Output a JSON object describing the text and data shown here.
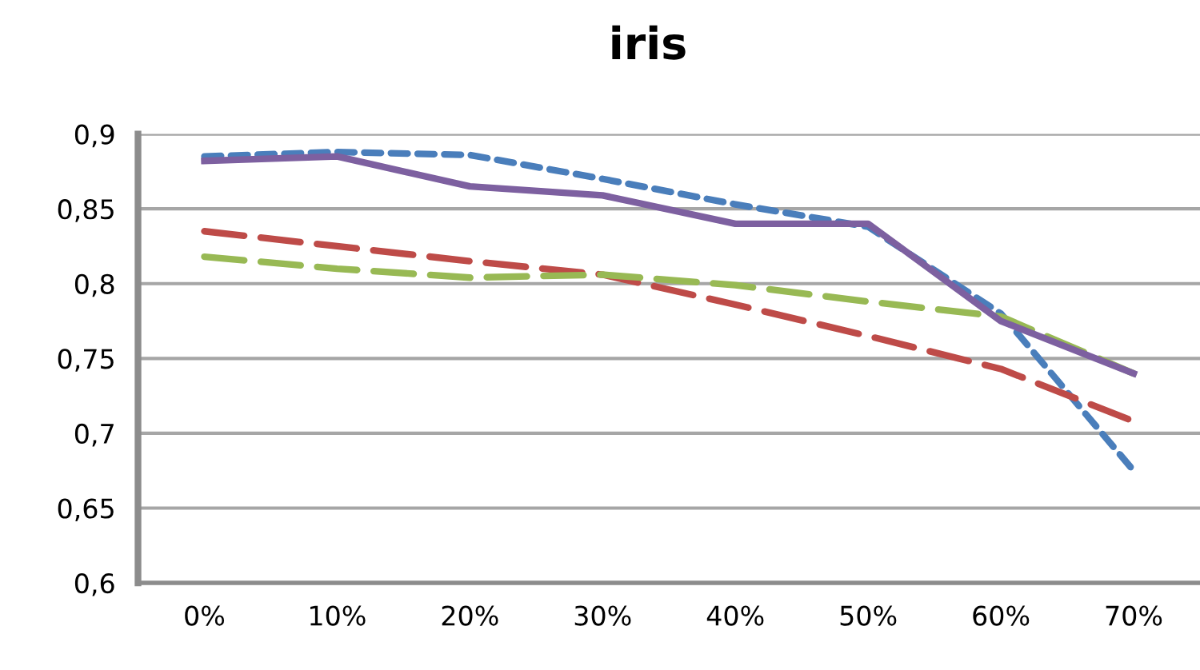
{
  "chart_data": {
    "type": "line",
    "title": "iris",
    "categories": [
      "0%",
      "10%",
      "20%",
      "30%",
      "40%",
      "50%",
      "60%",
      "70%"
    ],
    "series": [
      {
        "color": "#4a7ebb",
        "line_style": "dotted",
        "values": [
          0.885,
          0.888,
          0.886,
          0.87,
          0.853,
          0.838,
          0.78,
          0.675
        ]
      },
      {
        "color": "#be4b48",
        "line_style": "dashed",
        "values": [
          0.835,
          0.825,
          0.815,
          0.806,
          0.786,
          0.765,
          0.743,
          0.708
        ]
      },
      {
        "color": "#98b954",
        "line_style": "dashed",
        "values": [
          0.818,
          0.81,
          0.804,
          0.806,
          0.799,
          0.788,
          0.778,
          0.74
        ]
      },
      {
        "color": "#7d60a0",
        "line_style": "solid",
        "values": [
          0.882,
          0.885,
          0.865,
          0.859,
          0.84,
          0.84,
          0.775,
          0.74
        ]
      }
    ],
    "ylim": [
      0.6,
      0.9
    ],
    "yticks": [
      {
        "value": 0.6,
        "label": "0,6"
      },
      {
        "value": 0.65,
        "label": "0,65"
      },
      {
        "value": 0.7,
        "label": "0,7"
      },
      {
        "value": 0.75,
        "label": "0,75"
      },
      {
        "value": 0.8,
        "label": "0,8"
      },
      {
        "value": 0.85,
        "label": "0,85"
      },
      {
        "value": 0.9,
        "label": "0,9"
      }
    ],
    "grid": "y",
    "marker": "none"
  }
}
